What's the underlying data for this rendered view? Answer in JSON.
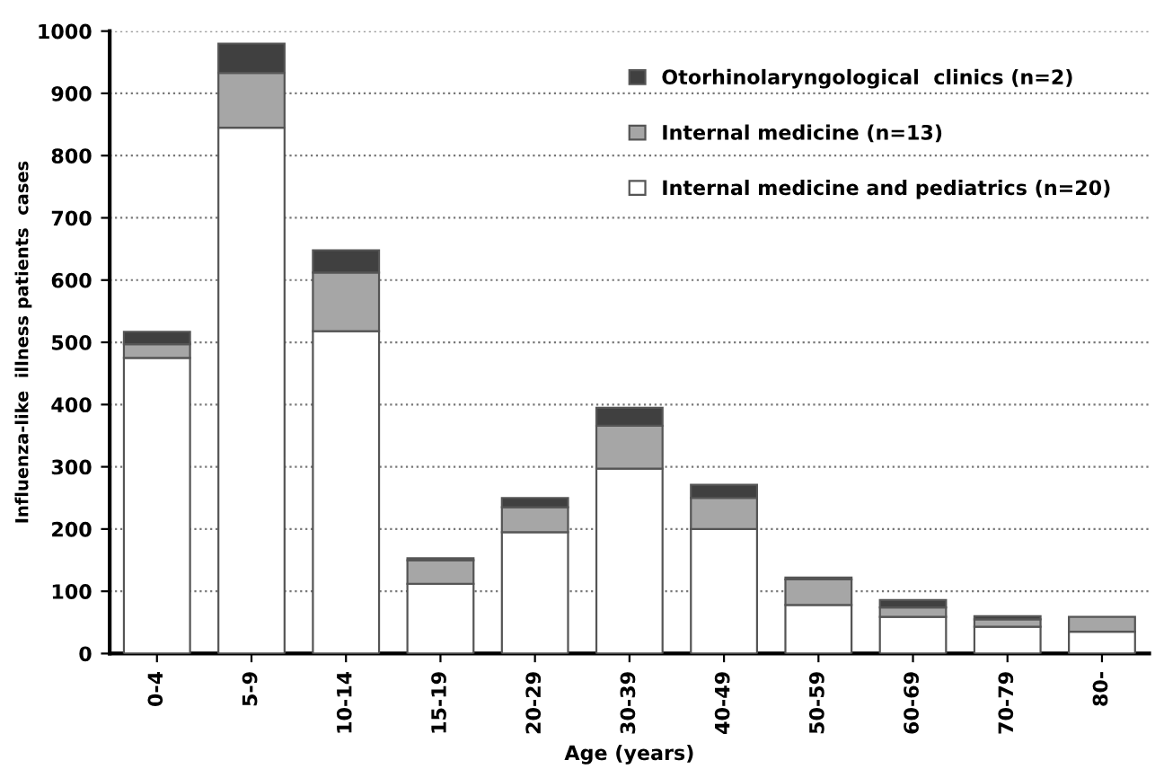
{
  "chart_data": {
    "type": "bar",
    "stacked": true,
    "xlabel": "Age (years)",
    "ylabel": "Influenza-like  illness patients  cases",
    "categories": [
      "0-4",
      "5-9",
      "10-14",
      "15-19",
      "20-29",
      "30-39",
      "40-49",
      "50-59",
      "60-69",
      "70-79",
      "80-"
    ],
    "series": [
      {
        "name": "Internal medicine and pediatrics (n=20)",
        "color": "#ffffff",
        "values": [
          475,
          845,
          518,
          112,
          195,
          297,
          200,
          78,
          59,
          43,
          35
        ]
      },
      {
        "name": "Internal medicine (n=13)",
        "color": "#a6a6a6",
        "values": [
          22,
          88,
          94,
          38,
          40,
          69,
          50,
          41,
          15,
          12,
          24
        ]
      },
      {
        "name": "Otorhinolaryngological  clinics (n=2)",
        "color": "#404040",
        "values": [
          20,
          47,
          36,
          3,
          15,
          29,
          21,
          3,
          12,
          5,
          0
        ]
      }
    ],
    "ylim": [
      0,
      1000
    ],
    "yticks": [
      0,
      100,
      200,
      300,
      400,
      500,
      600,
      700,
      800,
      900,
      1000
    ],
    "grid": "y",
    "legend": "top right"
  }
}
